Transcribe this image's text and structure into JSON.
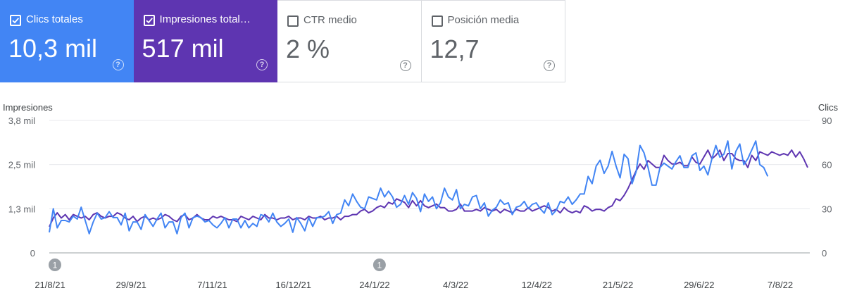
{
  "cards": [
    {
      "label": "Clics totales",
      "value": "10,3 mil",
      "checked": true,
      "color": "#4285f4"
    },
    {
      "label": "Impresiones total…",
      "value": "517 mil",
      "checked": true,
      "color": "#5e35b1"
    },
    {
      "label": "CTR medio",
      "value": "2 %",
      "checked": false,
      "color": "#ffffff"
    },
    {
      "label": "Posición media",
      "value": "12,7",
      "checked": false,
      "color": "#ffffff"
    }
  ],
  "help_glyph": "?",
  "chart_data": {
    "type": "line",
    "left_axis": {
      "title": "Impresiones",
      "ticks": [
        "0",
        "1,3 mil",
        "2,5 mil",
        "3,8 mil"
      ],
      "range": [
        0,
        3800
      ]
    },
    "right_axis": {
      "title": "Clics",
      "ticks": [
        "0",
        "30",
        "60",
        "90"
      ],
      "range": [
        0,
        90
      ]
    },
    "x_tick_labels": [
      "21/8/21",
      "29/9/21",
      "7/11/21",
      "16/12/21",
      "24/1/22",
      "4/3/22",
      "12/4/22",
      "21/5/22",
      "29/6/22",
      "7/8/22"
    ],
    "annotations": [
      {
        "label": "1",
        "date": "21/8/21"
      },
      {
        "label": "1",
        "date": "24/1/22"
      }
    ],
    "grid": true,
    "series": [
      {
        "name": "Impresiones",
        "axis": "left",
        "color": "#5e35b1",
        "values": [
          750,
          1000,
          1150,
          1000,
          1100,
          950,
          1100,
          1050,
          1000,
          1050,
          950,
          1100,
          1150,
          1050,
          1000,
          1050,
          1050,
          1150,
          1100,
          1000,
          950,
          1050,
          900,
          1000,
          1050,
          950,
          1000,
          950,
          1000,
          1100,
          1050,
          950,
          900,
          1050,
          1100,
          950,
          1000,
          1100,
          1000,
          950,
          950,
          1050,
          1000,
          1050,
          1000,
          950,
          950,
          900,
          1050,
          1000,
          950,
          1050,
          1000,
          950,
          1100,
          1000,
          1000,
          950,
          1000,
          1000,
          1050,
          950,
          1000,
          1000,
          950,
          1050,
          1000,
          1000,
          1050,
          950,
          1000,
          1000,
          1050,
          950,
          1050,
          1050,
          1100,
          1100,
          1200,
          1250,
          1150,
          1200,
          1300,
          1350,
          1300,
          1450,
          1400,
          1550,
          1500,
          1450,
          1300,
          1500,
          1350,
          1500,
          1350,
          1300,
          1350,
          1400,
          1300,
          1300,
          1200,
          1200,
          1250,
          1400,
          1200,
          1200,
          1200,
          1250,
          1200,
          1300,
          1250,
          1200,
          1250,
          1150,
          1250,
          1200,
          1150,
          1250,
          1200,
          1200,
          1300,
          1200,
          1250,
          1300,
          1350,
          1300,
          1200,
          1250,
          1150,
          1300,
          1200,
          1150,
          1200,
          1150,
          1350,
          1300,
          1200,
          1250,
          1250,
          1200,
          1300,
          1350,
          1550,
          1500,
          1650,
          1850,
          2100,
          2350,
          2550,
          2400,
          2650,
          2550,
          2450,
          2450,
          2800,
          2650,
          2550,
          2550,
          2600,
          2500,
          2500,
          2750,
          2600,
          2550,
          2750,
          2950,
          2700,
          2800,
          2950,
          2650,
          2850,
          2850,
          2700,
          2650,
          2650,
          2450,
          2800,
          2650,
          2900,
          2850,
          2800,
          2900,
          2850,
          2800,
          2850,
          2800,
          2950,
          2750,
          2900,
          2700,
          2450
        ]
      },
      {
        "name": "Clics",
        "axis": "right",
        "color": "#4285f4",
        "values": [
          14,
          30,
          17,
          22,
          22,
          21,
          25,
          23,
          31,
          22,
          13,
          21,
          27,
          23,
          24,
          28,
          24,
          24,
          19,
          27,
          15,
          21,
          21,
          16,
          26,
          22,
          18,
          23,
          27,
          17,
          21,
          21,
          13,
          24,
          27,
          17,
          24,
          25,
          24,
          21,
          22,
          19,
          17,
          20,
          24,
          17,
          23,
          23,
          17,
          22,
          17,
          20,
          18,
          26,
          25,
          21,
          27,
          21,
          18,
          20,
          23,
          14,
          24,
          20,
          15,
          24,
          18,
          24,
          24,
          25,
          28,
          20,
          26,
          27,
          36,
          32,
          40,
          35,
          31,
          30,
          38,
          37,
          36,
          44,
          38,
          42,
          38,
          31,
          33,
          39,
          33,
          41,
          37,
          28,
          40,
          35,
          38,
          30,
          34,
          44,
          38,
          36,
          43,
          30,
          33,
          32,
          38,
          39,
          30,
          34,
          25,
          29,
          31,
          36,
          33,
          34,
          26,
          31,
          32,
          35,
          30,
          33,
          34,
          30,
          27,
          34,
          26,
          29,
          35,
          34,
          38,
          33,
          36,
          40,
          40,
          52,
          47,
          59,
          63,
          54,
          59,
          69,
          59,
          51,
          67,
          64,
          47,
          55,
          73,
          68,
          58,
          46,
          46,
          58,
          61,
          59,
          57,
          62,
          66,
          58,
          58,
          66,
          68,
          56,
          59,
          53,
          64,
          73,
          65,
          67,
          76,
          57,
          69,
          74,
          60,
          64,
          70,
          76,
          60,
          58,
          52
        ]
      }
    ]
  }
}
